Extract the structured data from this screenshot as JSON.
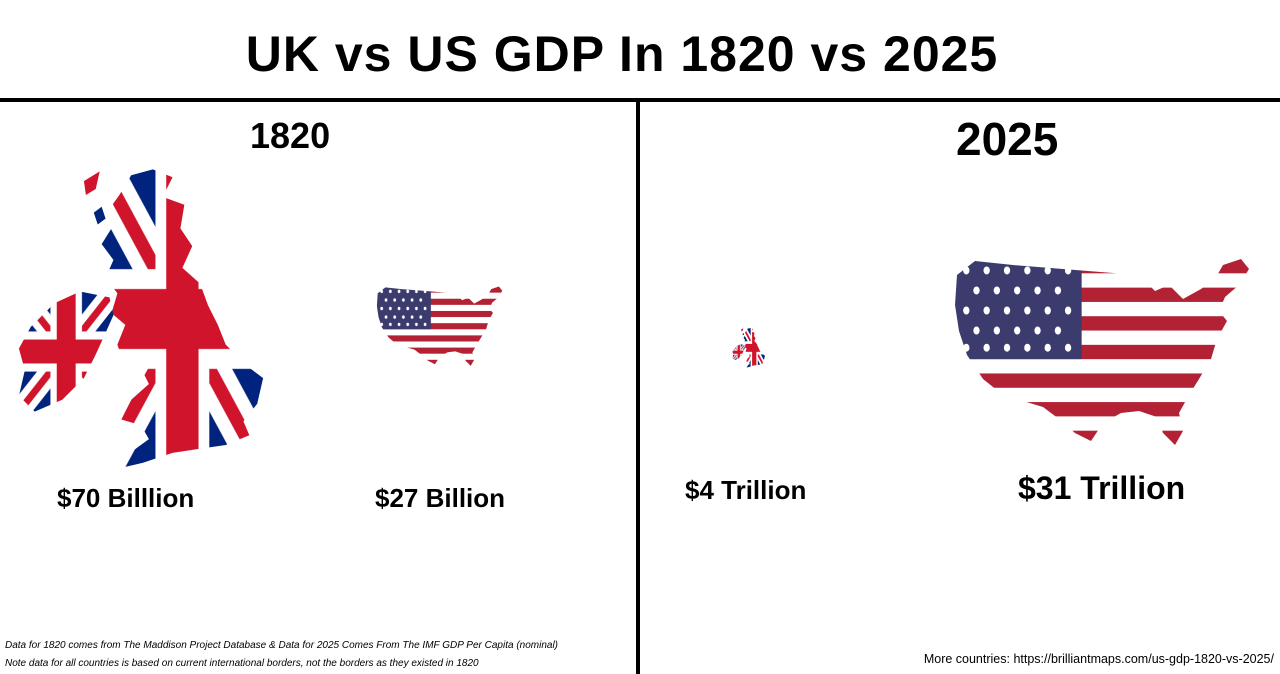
{
  "title": "UK vs US GDP In 1820 vs 2025",
  "panels": {
    "left": {
      "year": "1820",
      "uk": {
        "gdp_label": "$70 Billlion",
        "flag": "union-jack"
      },
      "us": {
        "gdp_label": "$27 Billion",
        "flag": "stars-and-stripes"
      }
    },
    "right": {
      "year": "2025",
      "uk": {
        "gdp_label": "$4 Trillion",
        "flag": "union-jack"
      },
      "us": {
        "gdp_label": "$31 Trillion",
        "flag": "stars-and-stripes"
      }
    }
  },
  "footnotes": {
    "source": "Data for 1820 comes from The Maddison Project Database & Data for 2025 Comes From The IMF GDP Per Capita (nominal)",
    "borders": "Note data for all countries is based on current international borders, not the borders as they existed in 1820",
    "more": "More countries: https://brilliantmaps.com/us-gdp-1820-vs-2025/"
  },
  "colors": {
    "flag_red": "#cf142b",
    "flag_blue": "#00247d",
    "stripe_white": "#ffffff",
    "divider": "#000000"
  }
}
